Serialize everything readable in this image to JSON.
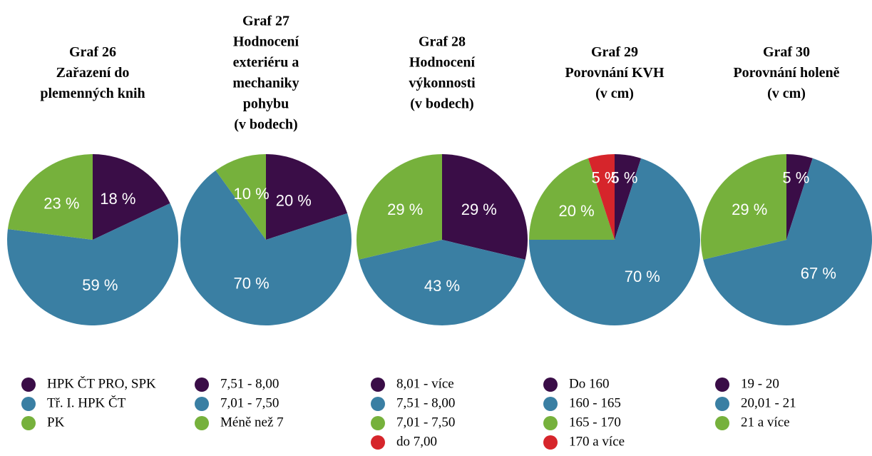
{
  "chart_data": [
    {
      "type": "pie",
      "title": [
        "Graf  26",
        "Zařazení do",
        "plemenných knih"
      ],
      "categories": [
        "HPK ČT PRO, SPK",
        "Tř. I. HPK ČT",
        "PK"
      ],
      "values": [
        18,
        59,
        23
      ],
      "value_labels": [
        "18 %",
        "59 %",
        "23 %"
      ],
      "colors": [
        "#3a0d47",
        "#3a7fa3",
        "#76b13c"
      ]
    },
    {
      "type": "pie",
      "title": [
        "Graf  27",
        "Hodnocení",
        "exteriéru a",
        "mechaniky",
        "pohybu",
        "(v bodech)"
      ],
      "categories": [
        "7,51 - 8,00",
        "7,01 - 7,50",
        "Méně než 7"
      ],
      "values": [
        20,
        70,
        10
      ],
      "value_labels": [
        "20 %",
        "70 %",
        "10 %"
      ],
      "colors": [
        "#3a0d47",
        "#3a7fa3",
        "#76b13c"
      ]
    },
    {
      "type": "pie",
      "title": [
        "Graf  28",
        "Hodnocení",
        "výkonnosti",
        "(v bodech)"
      ],
      "categories": [
        "8,01 - více",
        "7,51 - 8,00",
        "7,01 - 7,50",
        "do 7,00"
      ],
      "values": [
        29,
        43,
        29,
        null
      ],
      "value_labels": [
        "29 %",
        "43 %",
        "29 %",
        null
      ],
      "colors": [
        "#3a0d47",
        "#3a7fa3",
        "#76b13c",
        "#d6252b"
      ]
    },
    {
      "type": "pie",
      "title": [
        "Graf  29",
        "Porovnání KVH",
        "(v cm)"
      ],
      "categories": [
        "Do 160",
        "160 - 165",
        "165 - 170",
        "170 a více"
      ],
      "values": [
        5,
        70,
        20,
        5
      ],
      "value_labels": [
        "5 %",
        "70 %",
        "20 %",
        "5 %"
      ],
      "colors": [
        "#3a0d47",
        "#3a7fa3",
        "#76b13c",
        "#d6252b"
      ]
    },
    {
      "type": "pie",
      "title": [
        "Graf  30",
        "Porovnání holeně",
        "(v cm)"
      ],
      "categories": [
        "19 - 20",
        "20,01 - 21",
        "21 a více"
      ],
      "values": [
        5,
        67,
        29
      ],
      "value_labels": [
        "5 %",
        "67 %",
        "29 %"
      ],
      "colors": [
        "#3a0d47",
        "#3a7fa3",
        "#76b13c"
      ]
    }
  ]
}
